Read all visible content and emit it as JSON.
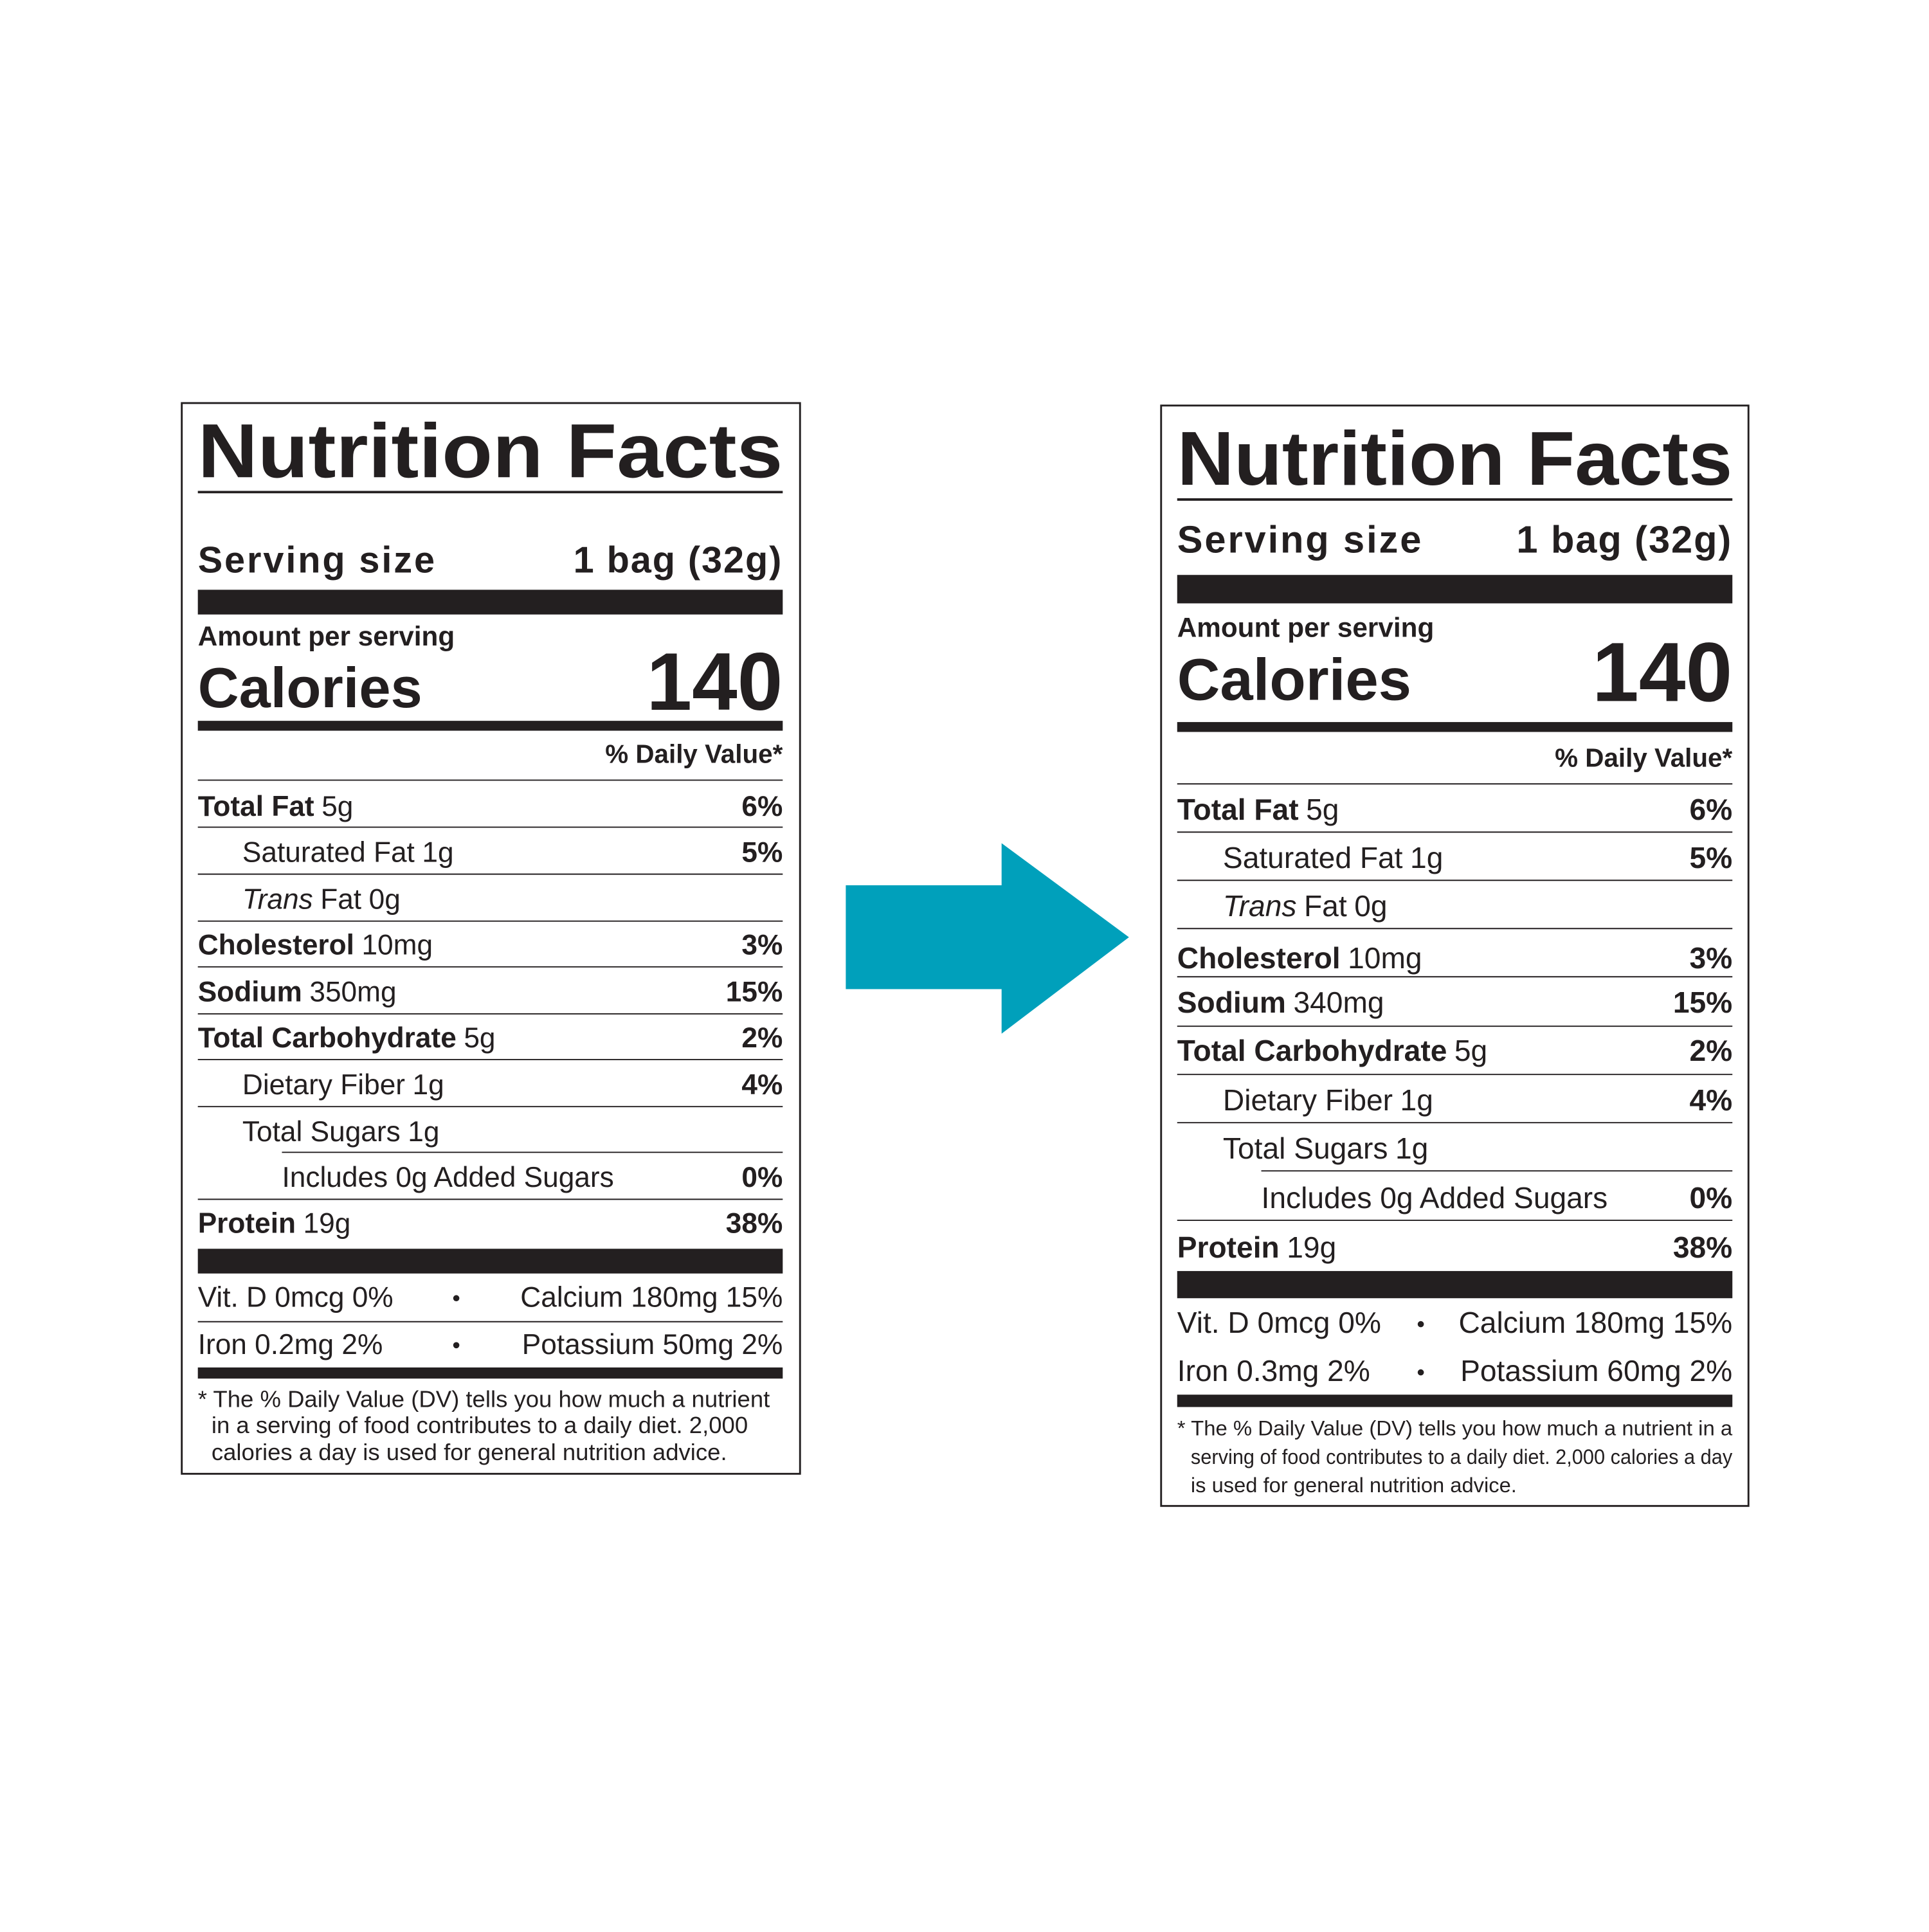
{
  "labels": [
    {
      "title": "Nutrition Facts",
      "serving_label": "Serving size",
      "serving_value": "1 bag (32g)",
      "amount_per_serving": "Amount per serving",
      "calories_label": "Calories",
      "calories_value": "140",
      "dv_header": "% Daily Value*",
      "nutrients": [
        {
          "name": "Total Fat",
          "amount": "5g",
          "dv": "6%"
        },
        {
          "name": "Saturated Fat",
          "amount": "1g",
          "dv": "5%"
        },
        {
          "name_italic": "Trans",
          "name": "Fat",
          "amount": "0g"
        },
        {
          "name": "Cholesterol",
          "amount": "10mg",
          "dv": "3%"
        },
        {
          "name": "Sodium",
          "amount": "350mg",
          "dv": "15%"
        },
        {
          "name": "Total Carbohydrate",
          "amount": "5g",
          "dv": "2%"
        },
        {
          "name": "Dietary Fiber",
          "amount": "1g",
          "dv": "4%"
        },
        {
          "name": "Total Sugars",
          "amount": "1g"
        },
        {
          "name": "Includes 0g Added Sugars",
          "dv": "0%"
        },
        {
          "name": "Protein",
          "amount": "19g",
          "dv": "38%"
        }
      ],
      "vitamins": [
        [
          "Vit. D 0mcg 0%",
          "Calcium 180mg 15%"
        ],
        [
          "Iron 0.2mg 2%",
          "Potassium 50mg 2%"
        ]
      ],
      "footnote": [
        "* The % Daily Value (DV) tells you how much a nutrient",
        "in a serving of food contributes to a daily diet. 2,000",
        "calories a day is used for general nutrition advice."
      ]
    },
    {
      "title": "Nutrition Facts",
      "serving_label": "Serving size",
      "serving_value": "1 bag (32g)",
      "amount_per_serving": "Amount per serving",
      "calories_label": "Calories",
      "calories_value": "140",
      "dv_header": "% Daily Value*",
      "nutrients": [
        {
          "name": "Total Fat",
          "amount": "5g",
          "dv": "6%"
        },
        {
          "name": "Saturated Fat",
          "amount": "1g",
          "dv": "5%"
        },
        {
          "name_italic": "Trans",
          "name": "Fat",
          "amount": "0g"
        },
        {
          "name": "Cholesterol",
          "amount": "10mg",
          "dv": "3%"
        },
        {
          "name": "Sodium",
          "amount": "340mg",
          "dv": "15%"
        },
        {
          "name": "Total Carbohydrate",
          "amount": "5g",
          "dv": "2%"
        },
        {
          "name": "Dietary Fiber",
          "amount": "1g",
          "dv": "4%"
        },
        {
          "name": "Total Sugars",
          "amount": "1g"
        },
        {
          "name": "Includes 0g Added Sugars",
          "dv": "0%"
        },
        {
          "name": "Protein",
          "amount": "19g",
          "dv": "38%"
        }
      ],
      "vitamins": [
        [
          "Vit. D 0mcg 0%",
          "Calcium 180mg 15%"
        ],
        [
          "Iron 0.3mg 2%",
          "Potassium 60mg 2%"
        ]
      ],
      "footnote": [
        "* The % Daily Value (DV) tells you how much a nutrient in a",
        "serving of food contributes to a daily diet. 2,000 calories a day",
        "is used for general nutrition advice."
      ]
    }
  ]
}
